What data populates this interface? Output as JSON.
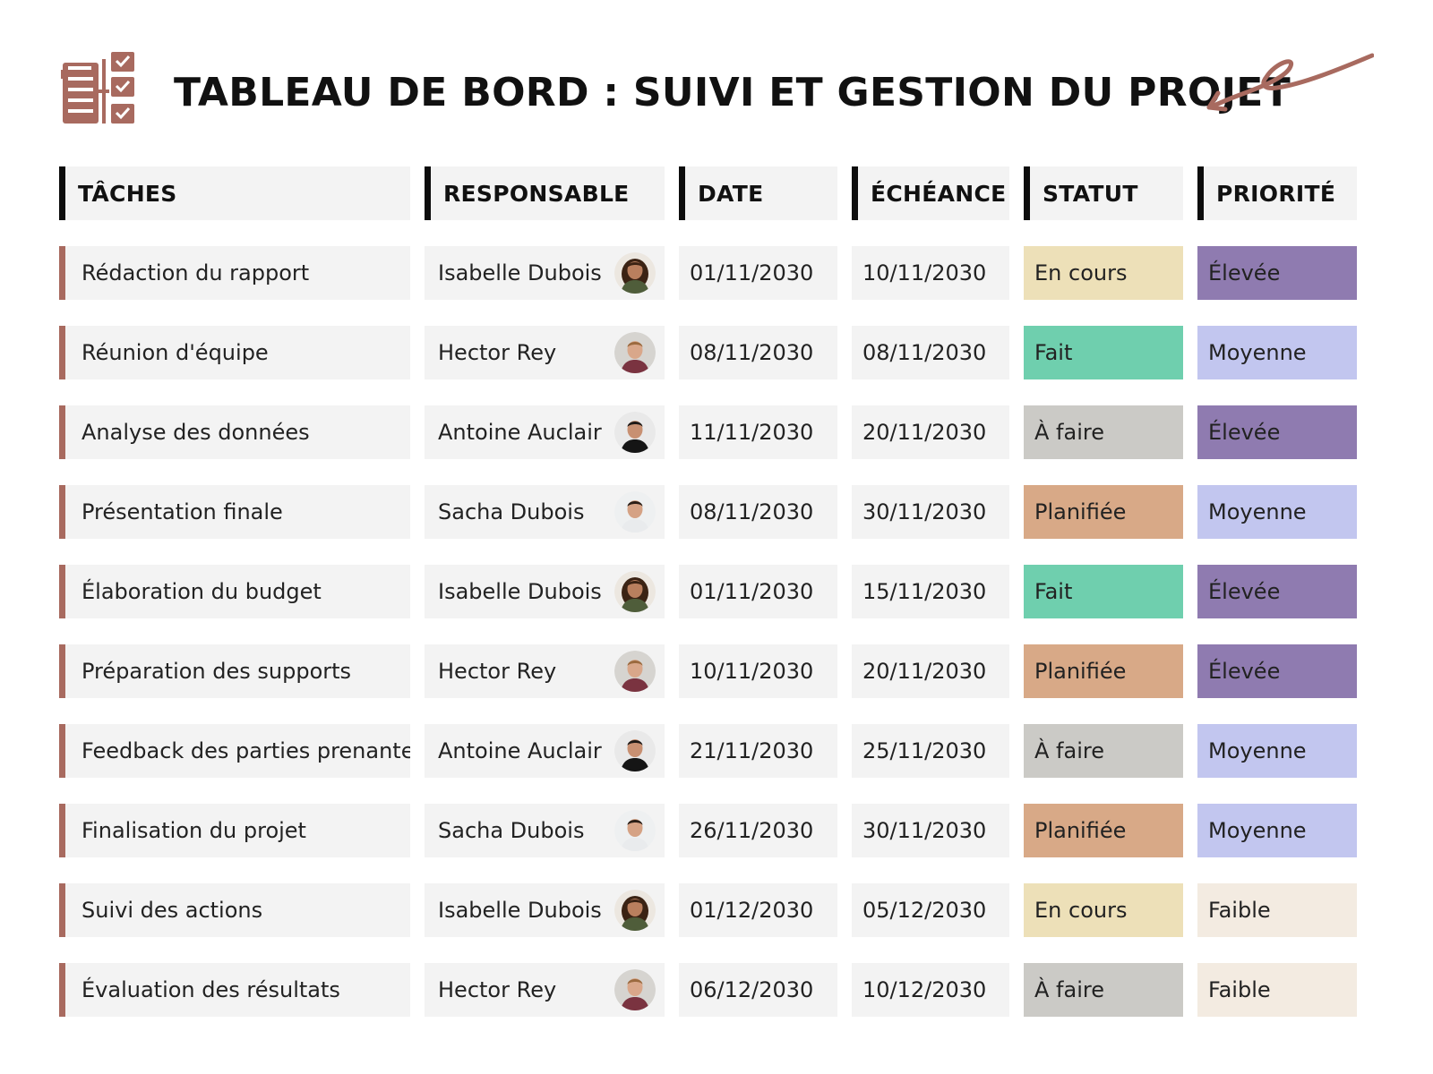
{
  "title": "TABLEAU DE BORD : SUIVI ET GESTION DU PROJET",
  "colors": {
    "accent": "#a86a5f",
    "status": {
      "En cours": "#ede0b8",
      "Fait": "#6fcfae",
      "À faire": "#cbcac6",
      "Planifiée": "#d8a987"
    },
    "priority": {
      "Élevée": "#8f7bb0",
      "Moyenne": "#c2c6ef",
      "Faible": "#f3ebe1"
    }
  },
  "columns": [
    "TÂCHES",
    "RESPONSABLE",
    "DATE",
    "ÉCHÉANCE",
    "STATUT",
    "PRIORITÉ"
  ],
  "rows": [
    {
      "task": "Rédaction du rapport",
      "responsible": "Isabelle Dubois",
      "date": "01/11/2030",
      "due": "10/11/2030",
      "status": "En cours",
      "priority": "Élevée"
    },
    {
      "task": "Réunion d'équipe",
      "responsible": "Hector Rey",
      "date": "08/11/2030",
      "due": "08/11/2030",
      "status": "Fait",
      "priority": "Moyenne"
    },
    {
      "task": "Analyse des données",
      "responsible": "Antoine Auclair",
      "date": "11/11/2030",
      "due": "20/11/2030",
      "status": "À faire",
      "priority": "Élevée"
    },
    {
      "task": "Présentation finale",
      "responsible": "Sacha Dubois",
      "date": "08/11/2030",
      "due": "30/11/2030",
      "status": "Planifiée",
      "priority": "Moyenne"
    },
    {
      "task": "Élaboration du budget",
      "responsible": "Isabelle Dubois",
      "date": "01/11/2030",
      "due": "15/11/2030",
      "status": "Fait",
      "priority": "Élevée"
    },
    {
      "task": "Préparation des supports",
      "responsible": "Hector Rey",
      "date": "10/11/2030",
      "due": "20/11/2030",
      "status": "Planifiée",
      "priority": "Élevée"
    },
    {
      "task": "Feedback des parties prenantes",
      "responsible": "Antoine Auclair",
      "date": "21/11/2030",
      "due": "25/11/2030",
      "status": "À faire",
      "priority": "Moyenne"
    },
    {
      "task": "Finalisation du projet",
      "responsible": "Sacha Dubois",
      "date": "26/11/2030",
      "due": "30/11/2030",
      "status": "Planifiée",
      "priority": "Moyenne"
    },
    {
      "task": "Suivi des actions",
      "responsible": "Isabelle Dubois",
      "date": "01/12/2030",
      "due": "05/12/2030",
      "status": "En cours",
      "priority": "Faible"
    },
    {
      "task": "Évaluation des résultats",
      "responsible": "Hector Rey",
      "date": "06/12/2030",
      "due": "10/12/2030",
      "status": "À faire",
      "priority": "Faible"
    }
  ]
}
